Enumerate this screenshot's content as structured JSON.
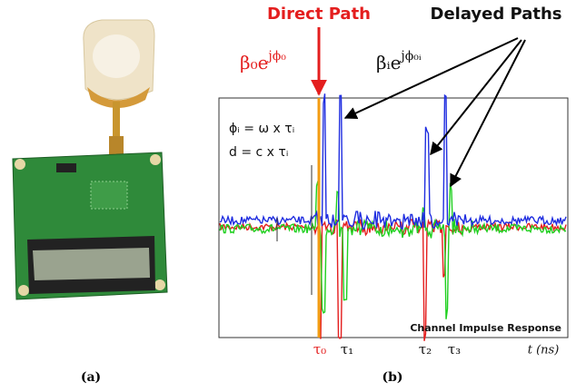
{
  "figure": {
    "panel_a": {
      "label": "(a)"
    },
    "panel_b": {
      "label": "(b)",
      "direct_path": "Direct Path",
      "delayed_paths": "Delayed Paths",
      "direct_term": {
        "base": "β₀e",
        "exponent": "jϕ₀"
      },
      "delayed_term": {
        "base": "βᵢe",
        "exponent": "jϕ₀ᵢ"
      },
      "phase_equation": "ϕᵢ = ω x τᵢ",
      "distance_equation": "d = c x τᵢ",
      "plot_title": "Channel Impulse Response",
      "delays": [
        "τ₀",
        "τ₁",
        "τ₂",
        "τ₃"
      ],
      "time_axis": "t (ns)"
    }
  }
}
